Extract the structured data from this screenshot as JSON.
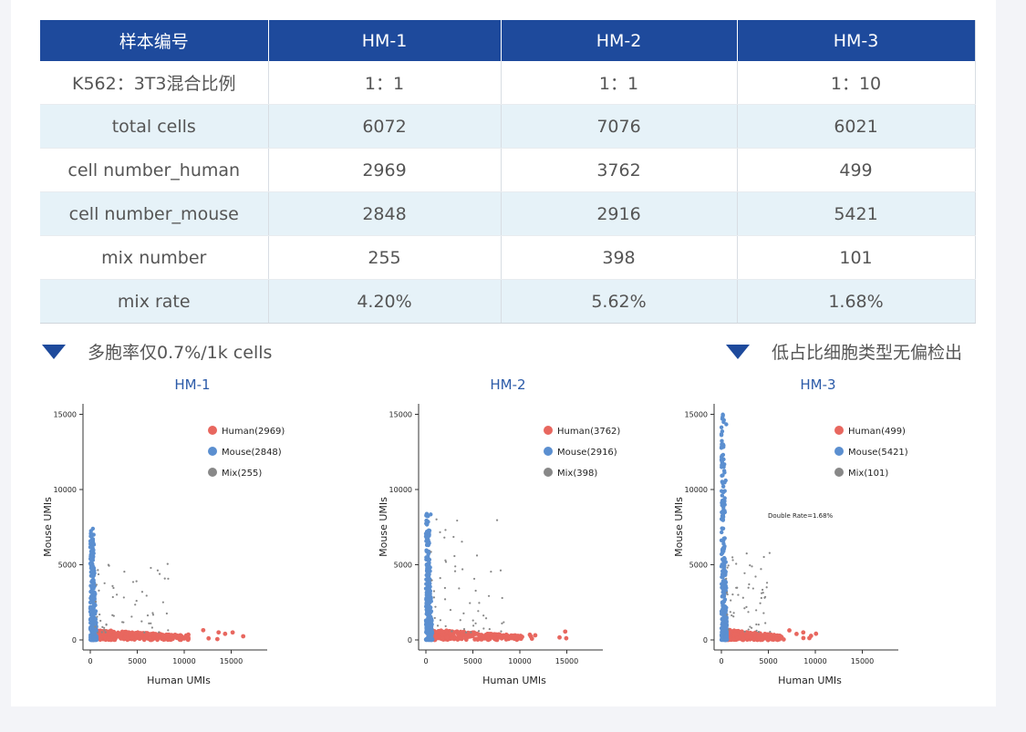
{
  "table": {
    "headers": [
      "样本编号",
      "HM-1",
      "HM-2",
      "HM-3"
    ],
    "rows": [
      [
        "K562：3T3混合比例",
        "1：1",
        "1：1",
        "1：10"
      ],
      [
        "total cells",
        "6072",
        "7076",
        "6021"
      ],
      [
        "cell number_human",
        "2969",
        "3762",
        "499"
      ],
      [
        "cell number_mouse",
        "2848",
        "2916",
        "5421"
      ],
      [
        "mix number",
        "255",
        "398",
        "101"
      ],
      [
        "mix rate",
        "4.20%",
        "5.62%",
        "1.68%"
      ]
    ]
  },
  "captions": {
    "left": "多胞率仅0.7%/1k cells",
    "right": "低占比细胞类型无偏检出"
  },
  "colors": {
    "header": "#1e4a9c",
    "human": "#e8675f",
    "mouse": "#5b8fd0",
    "mix": "#888888",
    "title": "#2b5aa8"
  },
  "chart_data": [
    {
      "type": "scatter",
      "title": "HM-1",
      "xlabel": "Human UMIs",
      "ylabel": "Mouse UMIs",
      "xlim": [
        0,
        18000
      ],
      "ylim": [
        0,
        15000
      ],
      "xticks": [
        "0",
        "5000",
        "10000",
        "15000"
      ],
      "yticks": [
        "0",
        "5000",
        "10000",
        "15000"
      ],
      "legend": [
        "Human(2969)",
        "Mouse(2848)",
        "Mix(255)"
      ],
      "legend_position": "top-right",
      "series": [
        {
          "name": "Human(2969)",
          "max_x": 16800,
          "max_y": 700
        },
        {
          "name": "Mouse(2848)",
          "max_x": 700,
          "max_y": 7400
        },
        {
          "name": "Mix(255)",
          "max_x": 10000,
          "max_y": 5500
        }
      ]
    },
    {
      "type": "scatter",
      "title": "HM-2",
      "xlabel": "Human UMIs",
      "ylabel": "Mouse UMIs",
      "xlim": [
        0,
        18000
      ],
      "ylim": [
        0,
        15000
      ],
      "xticks": [
        "0",
        "5000",
        "10000",
        "15000"
      ],
      "yticks": [
        "0",
        "5000",
        "10000",
        "15000"
      ],
      "legend": [
        "Human(3762)",
        "Mouse(2916)",
        "Mix(398)"
      ],
      "legend_position": "top-right",
      "series": [
        {
          "name": "Human(3762)",
          "max_x": 16500,
          "max_y": 700
        },
        {
          "name": "Mouse(2916)",
          "max_x": 700,
          "max_y": 8400
        },
        {
          "name": "Mix(398)",
          "max_x": 10000,
          "max_y": 8900
        }
      ]
    },
    {
      "type": "scatter",
      "title": "HM-3",
      "xlabel": "Human UMIs",
      "ylabel": "Mouse UMIs",
      "xlim": [
        0,
        18000
      ],
      "ylim": [
        0,
        15000
      ],
      "xticks": [
        "0",
        "5000",
        "10000",
        "15000"
      ],
      "yticks": [
        "0",
        "5000",
        "10000",
        "15000"
      ],
      "legend": [
        "Human(499)",
        "Mouse(5421)",
        "Mix(101)"
      ],
      "legend_position": "top-right",
      "annotation": "Double Rate=1.68%",
      "series": [
        {
          "name": "Human(499)",
          "max_x": 10200,
          "max_y": 700
        },
        {
          "name": "Mouse(5421)",
          "max_x": 600,
          "max_y": 15000
        },
        {
          "name": "Mix(101)",
          "max_x": 6000,
          "max_y": 6500
        }
      ]
    }
  ]
}
